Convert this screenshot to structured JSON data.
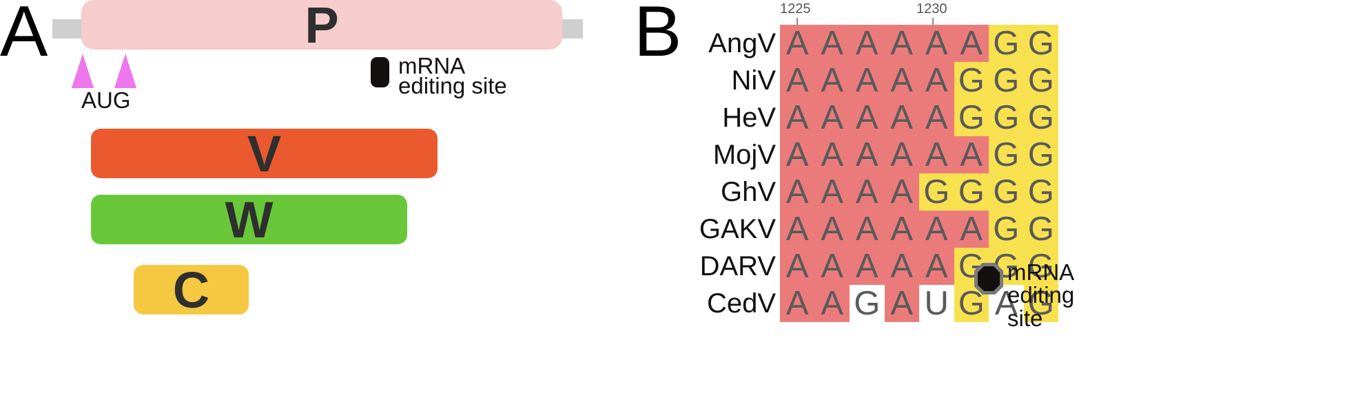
{
  "colors": {
    "p_bar": "#f6cccc",
    "v_bar": "#ea5a2e",
    "w_bar": "#68c83a",
    "c_bar": "#f5c842",
    "aug_marker": "#ee77ee",
    "edit_marker": "#141010",
    "cell_a": "#eb7b7b",
    "cell_g": "#f8e14e",
    "cell_other": "#ffffff"
  },
  "panel_a": {
    "letter": "A",
    "bars": [
      {
        "label": "P"
      },
      {
        "label": "V"
      },
      {
        "label": "W"
      },
      {
        "label": "C"
      }
    ],
    "aug_label": "AUG",
    "edit_label_line1": "mRNA",
    "edit_label_line2": "editing site"
  },
  "panel_b": {
    "letter": "B",
    "ticks": [
      "1225",
      "1230"
    ],
    "rows": [
      {
        "name": "AngV",
        "seq": [
          "A",
          "A",
          "A",
          "A",
          "A",
          "A",
          "G",
          "G"
        ],
        "shade": [
          "A",
          "A",
          "A",
          "A",
          "A",
          "A",
          "G",
          "G"
        ]
      },
      {
        "name": "NiV",
        "seq": [
          "A",
          "A",
          "A",
          "A",
          "A",
          "G",
          "G",
          "G"
        ],
        "shade": [
          "A",
          "A",
          "A",
          "A",
          "A",
          "G",
          "G",
          "G"
        ]
      },
      {
        "name": "HeV",
        "seq": [
          "A",
          "A",
          "A",
          "A",
          "A",
          "G",
          "G",
          "G"
        ],
        "shade": [
          "A",
          "A",
          "A",
          "A",
          "A",
          "G",
          "G",
          "G"
        ]
      },
      {
        "name": "MojV",
        "seq": [
          "A",
          "A",
          "A",
          "A",
          "A",
          "A",
          "G",
          "G"
        ],
        "shade": [
          "A",
          "A",
          "A",
          "A",
          "A",
          "A",
          "G",
          "G"
        ]
      },
      {
        "name": "GhV",
        "seq": [
          "A",
          "A",
          "A",
          "A",
          "G",
          "G",
          "G",
          "G"
        ],
        "shade": [
          "A",
          "A",
          "A",
          "A",
          "G",
          "G",
          "G",
          "G"
        ]
      },
      {
        "name": "GAKV",
        "seq": [
          "A",
          "A",
          "A",
          "A",
          "A",
          "A",
          "G",
          "G"
        ],
        "shade": [
          "A",
          "A",
          "A",
          "A",
          "A",
          "A",
          "G",
          "G"
        ]
      },
      {
        "name": "DARV",
        "seq": [
          "A",
          "A",
          "A",
          "A",
          "A",
          "G",
          "G",
          "G"
        ],
        "shade": [
          "A",
          "A",
          "A",
          "A",
          "A",
          "G",
          "G",
          "G"
        ]
      },
      {
        "name": "CedV",
        "seq": [
          "A",
          "A",
          "G",
          "A",
          "U",
          "G",
          "A",
          "G"
        ],
        "shade": [
          "A",
          "A",
          "W",
          "A",
          "W",
          "G",
          "W",
          "G"
        ]
      }
    ],
    "edit_label_line1": "mRNA",
    "edit_label_line2": "editing",
    "edit_label_line3": "site"
  }
}
